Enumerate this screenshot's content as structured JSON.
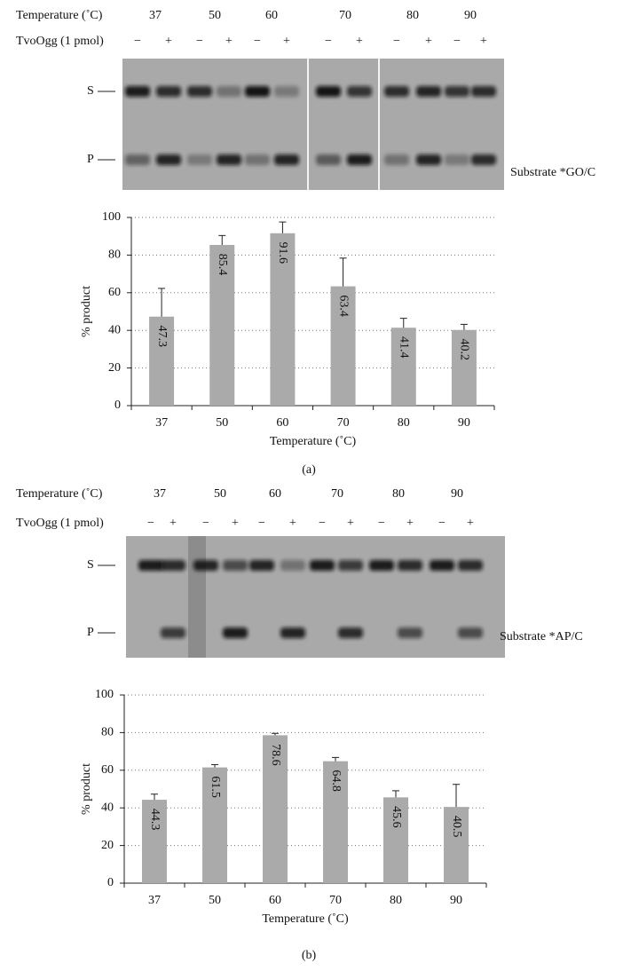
{
  "panels": [
    {
      "gel": {
        "row_labels": [
          "Temperature (˚C)",
          "TvoOgg (1 pmol)"
        ],
        "temperatures": [
          "37",
          "50",
          "60",
          "70",
          "80",
          "90"
        ],
        "signs": [
          "−",
          "+"
        ],
        "bands": [
          "S",
          "P"
        ],
        "substrate": "Substrate *GO/C"
      },
      "caption": "(a)"
    },
    {
      "gel": {
        "row_labels": [
          "Temperature (˚C)",
          "TvoOgg (1 pmol)"
        ],
        "temperatures": [
          "37",
          "50",
          "60",
          "70",
          "80",
          "90"
        ],
        "signs": [
          "−",
          "+"
        ],
        "bands": [
          "S",
          "P"
        ],
        "substrate": "Substrate *AP/C"
      },
      "caption": "(b)"
    }
  ],
  "chart_data": [
    {
      "type": "bar",
      "x_label": "Temperature (˚C)",
      "y_label": "% product",
      "categories": [
        "37",
        "50",
        "60",
        "70",
        "80",
        "90"
      ],
      "values": [
        47.3,
        85.4,
        91.6,
        63.4,
        41.4,
        40.2
      ],
      "errors": [
        15,
        5,
        6,
        15,
        5,
        3
      ],
      "color": "#aaaaaa",
      "ylim": [
        0,
        100
      ],
      "yticks": [
        0,
        20,
        40,
        60,
        80,
        100
      ],
      "grid": true
    },
    {
      "type": "bar",
      "x_label": "Temperature (˚C)",
      "y_label": "% product",
      "categories": [
        "37",
        "50",
        "60",
        "70",
        "80",
        "90"
      ],
      "values": [
        44.3,
        61.5,
        78.6,
        64.8,
        45.6,
        40.5
      ],
      "errors": [
        3,
        1.5,
        1,
        2,
        3.5,
        12
      ],
      "color": "#aaaaaa",
      "ylim": [
        0,
        100
      ],
      "yticks": [
        0,
        20,
        40,
        60,
        80,
        100
      ],
      "grid": true
    }
  ]
}
